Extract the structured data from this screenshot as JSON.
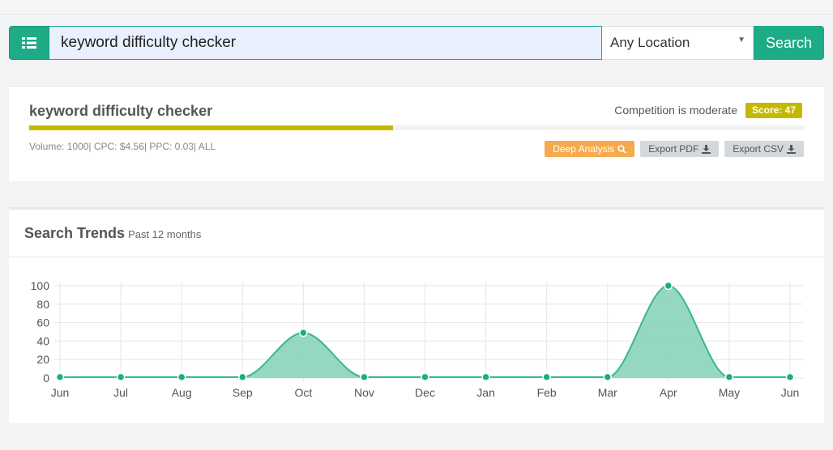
{
  "search": {
    "query": "keyword difficulty checker",
    "location": "Any Location",
    "button_label": "Search"
  },
  "keyword": {
    "title": "keyword difficulty checker",
    "competition_text": "Competition is moderate",
    "score_label": "Score: 47",
    "score_fraction": 0.47,
    "meta_text": "Volume: 1000| CPC: $4.56| PPC: 0.03| ALL",
    "actions": {
      "deep_analysis": "Deep Analysis",
      "export_pdf": "Export PDF",
      "export_csv": "Export CSV"
    }
  },
  "trends": {
    "title": "Search Trends",
    "subtitle": "Past 12 months"
  },
  "colors": {
    "brand_green": "#1eab87",
    "score_yellow": "#c5b800",
    "orange": "#f6a94f",
    "area_fill": "#8fd6be",
    "line": "#36b792"
  },
  "chart_data": {
    "type": "area",
    "categories": [
      "Jun",
      "Jul",
      "Aug",
      "Sep",
      "Oct",
      "Nov",
      "Dec",
      "Jan",
      "Feb",
      "Mar",
      "Apr",
      "May",
      "Jun"
    ],
    "values": [
      1,
      1,
      1,
      1,
      49,
      1,
      1,
      1,
      1,
      1,
      100,
      1,
      1
    ],
    "ylim": [
      0,
      100
    ],
    "yticks": [
      0,
      20,
      40,
      60,
      80,
      100
    ],
    "grid": true,
    "legend": "none"
  }
}
